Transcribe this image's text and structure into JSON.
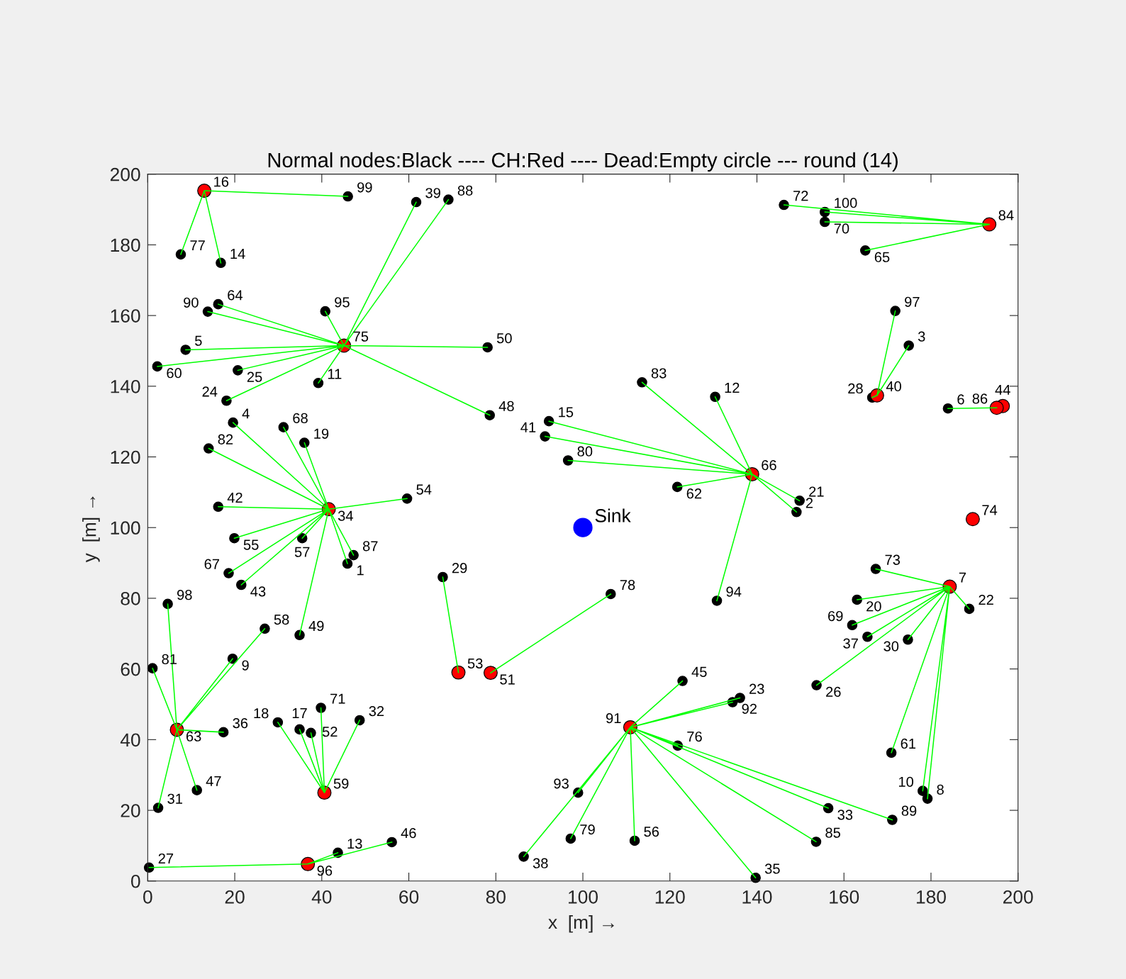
{
  "chart_data": {
    "type": "scatter",
    "title": "Normal nodes:Black ---- CH:Red ---- Dead:Empty circle --- round (14)",
    "xlabel": "x  [m] →",
    "ylabel": "y  [m] →",
    "xlim": [
      0,
      200
    ],
    "ylim": [
      0,
      200
    ],
    "xticks": [
      0,
      20,
      40,
      60,
      80,
      100,
      120,
      140,
      160,
      180,
      200
    ],
    "yticks": [
      0,
      20,
      40,
      60,
      80,
      100,
      120,
      140,
      160,
      180,
      200
    ],
    "line_style": "solid",
    "series": [
      {
        "color": "#000000",
        "marker": "circle",
        "x": [
          45.9,
          149.1,
          174.9,
          19.6,
          8.7,
          183.9,
          179.2,
          19.5,
          178.1,
          39.2,
          130.4,
          43.7,
          16.8,
          92.2,
          34.9,
          29.9,
          36.0,
          163.0,
          149.8,
          188.8,
          136.1,
          18.1,
          20.7,
          153.7,
          0.3,
          166.5,
          67.8,
          174.7,
          2.4,
          48.7,
          156.4,
          139.7,
          17.4,
          165.4,
          86.4,
          61.7,
          91.3,
          16.2,
          21.5,
          122.9,
          56.1,
          11.3,
          78.6,
          34.9,
          78.1,
          37.5,
          59.6,
          19.9,
          111.9,
          35.5,
          26.9,
          2.2,
          170.9,
          121.7,
          16.2,
          164.9,
          18.6,
          31.2,
          161.9,
          155.6,
          39.8,
          146.2,
          167.3,
          121.8,
          7.6,
          106.4,
          97.2,
          96.6,
          1.1,
          14.0,
          113.6,
          153.6,
          47.3,
          69.1,
          171.1,
          13.8,
          134.4,
          98.9,
          130.8,
          40.8,
          171.8,
          4.6,
          46.0,
          155.6
        ],
        "values": [
          89.8,
          104.4,
          151.5,
          129.7,
          150.3,
          133.7,
          23.3,
          62.9,
          25.5,
          140.9,
          137.0,
          8.0,
          174.9,
          130.1,
          42.9,
          44.9,
          124.0,
          79.6,
          107.6,
          77.0,
          51.8,
          135.9,
          144.5,
          55.4,
          3.8,
          136.8,
          86.0,
          68.3,
          20.7,
          45.5,
          20.6,
          0.9,
          42.1,
          69.1,
          6.9,
          192.1,
          125.8,
          105.9,
          83.8,
          56.6,
          11.0,
          25.7,
          131.8,
          69.6,
          151.0,
          41.9,
          108.2,
          97.0,
          11.4,
          97.0,
          71.4,
          145.6,
          36.3,
          111.5,
          163.2,
          178.4,
          87.1,
          128.4,
          72.4,
          186.5,
          49.0,
          191.3,
          88.3,
          38.3,
          177.3,
          81.2,
          12.0,
          119.0,
          60.2,
          122.4,
          141.1,
          11.1,
          92.2,
          192.8,
          17.3,
          161.1,
          50.6,
          25.0,
          79.3,
          161.2,
          161.3,
          78.4,
          193.7,
          189.3
        ]
      },
      {
        "color": "#ff0000",
        "marker": "circle",
        "x": [
          184.3,
          13.0,
          41.6,
          167.6,
          196.5,
          78.8,
          71.4,
          40.6,
          6.7,
          138.9,
          189.6,
          45.1,
          193.4,
          195.1,
          110.9,
          36.8
        ],
        "values": [
          83.3,
          195.3,
          105.2,
          137.4,
          134.4,
          58.9,
          59.0,
          25.0,
          42.8,
          115.1,
          102.4,
          151.5,
          185.8,
          133.9,
          43.5,
          4.8
        ]
      },
      {
        "color": "#0000ff",
        "marker": "circle",
        "x": [
          100
        ],
        "values": [
          100
        ]
      },
      {
        "type": "line",
        "color": "#00ff00",
        "x": [
          13.0,
          46.0,
          13.0,
          7.6,
          13.0,
          16.8
        ],
        "values": [
          195.3,
          193.7,
          195.3,
          177.3,
          195.3,
          174.9
        ]
      },
      {
        "type": "line",
        "color": "#00ff00",
        "x": [
          45.1,
          61.7,
          45.1,
          69.1,
          45.1,
          40.8,
          45.1,
          16.2,
          45.1,
          13.8,
          45.1,
          8.7,
          45.1,
          2.2,
          45.1,
          20.7,
          45.1,
          18.1,
          45.1,
          39.2,
          45.1,
          78.1,
          45.1,
          78.6
        ],
        "values": [
          151.5,
          192.1,
          151.5,
          192.8,
          151.5,
          161.2,
          151.5,
          163.2,
          151.5,
          161.1,
          151.5,
          150.3,
          151.5,
          145.6,
          151.5,
          144.5,
          151.5,
          135.9,
          151.5,
          140.9,
          151.5,
          151.0,
          151.5,
          131.8
        ]
      },
      {
        "type": "line",
        "color": "#00ff00",
        "x": [
          41.6,
          19.6,
          41.6,
          31.2,
          41.6,
          36.0,
          41.6,
          14.0,
          41.6,
          16.2,
          41.6,
          59.6,
          41.6,
          19.9,
          41.6,
          35.5,
          41.6,
          18.6,
          41.6,
          21.5,
          41.6,
          47.3,
          41.6,
          45.9,
          41.6,
          34.9
        ],
        "values": [
          105.2,
          129.7,
          105.2,
          128.4,
          105.2,
          124.0,
          105.2,
          122.4,
          105.2,
          105.9,
          105.2,
          108.2,
          105.2,
          97.0,
          105.2,
          97.0,
          105.2,
          87.1,
          105.2,
          83.8,
          105.2,
          92.2,
          105.2,
          89.8,
          105.2,
          69.6
        ]
      },
      {
        "type": "line",
        "color": "#00ff00",
        "x": [
          6.7,
          4.6,
          6.7,
          1.1,
          6.7,
          19.5,
          6.7,
          26.9,
          6.7,
          17.4,
          6.7,
          11.3,
          6.7,
          2.4
        ],
        "values": [
          42.8,
          78.4,
          42.8,
          60.2,
          42.8,
          62.9,
          42.8,
          71.4,
          42.8,
          42.1,
          42.8,
          25.7,
          42.8,
          20.7
        ]
      },
      {
        "type": "line",
        "color": "#00ff00",
        "x": [
          40.6,
          29.9,
          40.6,
          34.9,
          40.6,
          37.5,
          40.6,
          39.8,
          40.6,
          48.7
        ],
        "values": [
          25.0,
          44.9,
          25.0,
          42.9,
          25.0,
          41.9,
          25.0,
          49.0,
          25.0,
          45.5
        ]
      },
      {
        "type": "line",
        "color": "#00ff00",
        "x": [
          36.8,
          0.3,
          36.8,
          43.7,
          36.8,
          56.1
        ],
        "values": [
          4.8,
          3.8,
          4.8,
          8.0,
          4.8,
          11.0
        ]
      },
      {
        "type": "line",
        "color": "#00ff00",
        "x": [
          71.4,
          67.8
        ],
        "values": [
          59.0,
          86.0
        ]
      },
      {
        "type": "line",
        "color": "#00ff00",
        "x": [
          78.8,
          106.4
        ],
        "values": [
          58.9,
          81.2
        ]
      },
      {
        "type": "line",
        "color": "#00ff00",
        "x": [
          110.9,
          122.9,
          110.9,
          134.4,
          110.9,
          136.1,
          110.9,
          121.8,
          110.9,
          98.9,
          110.9,
          86.4,
          110.9,
          97.2,
          110.9,
          111.9,
          110.9,
          139.7,
          110.9,
          153.6,
          110.9,
          156.4,
          110.9,
          171.1
        ],
        "values": [
          43.5,
          56.6,
          43.5,
          50.6,
          43.5,
          51.8,
          43.5,
          38.3,
          43.5,
          25.0,
          43.5,
          6.9,
          43.5,
          12.0,
          43.5,
          11.4,
          43.5,
          0.9,
          43.5,
          11.1,
          43.5,
          20.6,
          43.5,
          17.3
        ]
      },
      {
        "type": "line",
        "color": "#00ff00",
        "x": [
          138.9,
          113.6,
          138.9,
          130.4,
          138.9,
          92.2,
          138.9,
          91.3,
          138.9,
          96.6,
          138.9,
          121.7,
          138.9,
          149.8,
          138.9,
          149.1,
          138.9,
          130.8
        ],
        "values": [
          115.1,
          141.1,
          115.1,
          137.0,
          115.1,
          130.1,
          115.1,
          125.8,
          115.1,
          119.0,
          115.1,
          111.5,
          115.1,
          107.6,
          115.1,
          104.4,
          115.1,
          79.3
        ]
      },
      {
        "type": "line",
        "color": "#00ff00",
        "x": [
          193.4,
          146.2,
          193.4,
          155.6,
          193.4,
          155.6,
          193.4,
          164.9
        ],
        "values": [
          185.8,
          191.3,
          185.8,
          189.3,
          185.8,
          186.5,
          185.8,
          178.4
        ]
      },
      {
        "type": "line",
        "color": "#00ff00",
        "x": [
          167.6,
          171.8,
          167.6,
          174.9,
          167.6,
          166.5
        ],
        "values": [
          137.4,
          161.3,
          137.4,
          151.5,
          137.4,
          136.8
        ]
      },
      {
        "type": "line",
        "color": "#00ff00",
        "x": [
          195.1,
          183.9
        ],
        "values": [
          133.9,
          133.7
        ]
      },
      {
        "type": "line",
        "color": "#00ff00",
        "x": [
          184.3,
          167.3,
          184.3,
          163.0,
          184.3,
          161.9,
          184.3,
          165.4,
          184.3,
          153.7,
          184.3,
          174.7,
          184.3,
          188.8,
          184.3,
          170.9,
          184.3,
          178.1,
          184.3,
          179.2
        ],
        "values": [
          83.3,
          88.3,
          83.3,
          79.6,
          83.3,
          72.4,
          83.3,
          69.1,
          83.3,
          55.4,
          83.3,
          68.3,
          83.3,
          77.0,
          83.3,
          36.3,
          83.3,
          25.5,
          83.3,
          23.3
        ]
      }
    ],
    "annotations": [
      {
        "text": "1",
        "x": 45.9,
        "y": 89.8
      },
      {
        "text": "2",
        "x": 149.1,
        "y": 104.4
      },
      {
        "text": "3",
        "x": 174.9,
        "y": 151.5
      },
      {
        "text": "4",
        "x": 19.6,
        "y": 129.7
      },
      {
        "text": "5",
        "x": 8.7,
        "y": 150.3
      },
      {
        "text": "6",
        "x": 183.9,
        "y": 133.7
      },
      {
        "text": "7",
        "x": 184.3,
        "y": 83.3
      },
      {
        "text": "8",
        "x": 179.2,
        "y": 23.3
      },
      {
        "text": "9",
        "x": 19.5,
        "y": 62.9
      },
      {
        "text": "10",
        "x": 178.1,
        "y": 25.5
      },
      {
        "text": "11",
        "x": 39.2,
        "y": 140.9
      },
      {
        "text": "12",
        "x": 130.4,
        "y": 137.0
      },
      {
        "text": "13",
        "x": 43.7,
        "y": 8.0
      },
      {
        "text": "14",
        "x": 16.8,
        "y": 174.9
      },
      {
        "text": "15",
        "x": 92.2,
        "y": 130.1
      },
      {
        "text": "16",
        "x": 13.0,
        "y": 195.3
      },
      {
        "text": "17",
        "x": 34.9,
        "y": 42.9
      },
      {
        "text": "18",
        "x": 29.9,
        "y": 44.9
      },
      {
        "text": "19",
        "x": 36.0,
        "y": 124.0
      },
      {
        "text": "20",
        "x": 163.0,
        "y": 79.6
      },
      {
        "text": "21",
        "x": 149.8,
        "y": 107.6
      },
      {
        "text": "22",
        "x": 188.8,
        "y": 77.0
      },
      {
        "text": "23",
        "x": 136.1,
        "y": 51.8
      },
      {
        "text": "24",
        "x": 18.1,
        "y": 135.9
      },
      {
        "text": "25",
        "x": 20.7,
        "y": 144.5
      },
      {
        "text": "26",
        "x": 153.7,
        "y": 55.4
      },
      {
        "text": "27",
        "x": 0.3,
        "y": 3.8
      },
      {
        "text": "28",
        "x": 166.5,
        "y": 136.8
      },
      {
        "text": "29",
        "x": 67.8,
        "y": 86.0
      },
      {
        "text": "30",
        "x": 174.7,
        "y": 68.3
      },
      {
        "text": "31",
        "x": 2.4,
        "y": 20.7
      },
      {
        "text": "32",
        "x": 48.7,
        "y": 45.5
      },
      {
        "text": "33",
        "x": 156.4,
        "y": 20.6
      },
      {
        "text": "34",
        "x": 41.6,
        "y": 105.2
      },
      {
        "text": "35",
        "x": 139.7,
        "y": 0.9
      },
      {
        "text": "36",
        "x": 17.4,
        "y": 42.1
      },
      {
        "text": "37",
        "x": 165.4,
        "y": 69.1
      },
      {
        "text": "38",
        "x": 86.4,
        "y": 6.9
      },
      {
        "text": "39",
        "x": 61.7,
        "y": 192.1
      },
      {
        "text": "40",
        "x": 167.6,
        "y": 137.4
      },
      {
        "text": "41",
        "x": 91.3,
        "y": 125.8
      },
      {
        "text": "42",
        "x": 16.2,
        "y": 105.9
      },
      {
        "text": "43",
        "x": 21.5,
        "y": 83.8
      },
      {
        "text": "44",
        "x": 196.5,
        "y": 134.4
      },
      {
        "text": "45",
        "x": 122.9,
        "y": 56.6
      },
      {
        "text": "46",
        "x": 56.1,
        "y": 11.0
      },
      {
        "text": "47",
        "x": 11.3,
        "y": 25.7
      },
      {
        "text": "48",
        "x": 78.6,
        "y": 131.8
      },
      {
        "text": "49",
        "x": 34.9,
        "y": 69.6
      },
      {
        "text": "50",
        "x": 78.1,
        "y": 151.0
      },
      {
        "text": "51",
        "x": 78.8,
        "y": 58.9
      },
      {
        "text": "52",
        "x": 37.5,
        "y": 41.9
      },
      {
        "text": "53",
        "x": 71.4,
        "y": 59.0
      },
      {
        "text": "54",
        "x": 59.6,
        "y": 108.2
      },
      {
        "text": "55",
        "x": 19.9,
        "y": 97.0
      },
      {
        "text": "56",
        "x": 111.9,
        "y": 11.4
      },
      {
        "text": "57",
        "x": 35.5,
        "y": 97.0
      },
      {
        "text": "58",
        "x": 26.9,
        "y": 71.4
      },
      {
        "text": "59",
        "x": 40.6,
        "y": 25.0
      },
      {
        "text": "60",
        "x": 2.2,
        "y": 145.6
      },
      {
        "text": "61",
        "x": 170.9,
        "y": 36.3
      },
      {
        "text": "62",
        "x": 121.7,
        "y": 111.5
      },
      {
        "text": "63",
        "x": 6.7,
        "y": 42.8
      },
      {
        "text": "64",
        "x": 16.2,
        "y": 163.2
      },
      {
        "text": "65",
        "x": 164.9,
        "y": 178.4
      },
      {
        "text": "66",
        "x": 138.9,
        "y": 115.1
      },
      {
        "text": "67",
        "x": 18.6,
        "y": 87.1
      },
      {
        "text": "68",
        "x": 31.2,
        "y": 128.4
      },
      {
        "text": "69",
        "x": 161.9,
        "y": 72.4
      },
      {
        "text": "70",
        "x": 155.6,
        "y": 186.5
      },
      {
        "text": "71",
        "x": 39.8,
        "y": 49.0
      },
      {
        "text": "72",
        "x": 146.2,
        "y": 191.3
      },
      {
        "text": "73",
        "x": 167.3,
        "y": 88.3
      },
      {
        "text": "74",
        "x": 189.6,
        "y": 102.4
      },
      {
        "text": "75",
        "x": 45.1,
        "y": 151.5
      },
      {
        "text": "76",
        "x": 121.8,
        "y": 38.3
      },
      {
        "text": "77",
        "x": 7.6,
        "y": 177.3
      },
      {
        "text": "78",
        "x": 106.4,
        "y": 81.2
      },
      {
        "text": "79",
        "x": 97.2,
        "y": 12.0
      },
      {
        "text": "80",
        "x": 96.6,
        "y": 119.0
      },
      {
        "text": "81",
        "x": 1.1,
        "y": 60.2
      },
      {
        "text": "82",
        "x": 14.0,
        "y": 122.4
      },
      {
        "text": "83",
        "x": 113.6,
        "y": 141.1
      },
      {
        "text": "84",
        "x": 193.4,
        "y": 185.8
      },
      {
        "text": "85",
        "x": 153.6,
        "y": 11.1
      },
      {
        "text": "86",
        "x": 195.1,
        "y": 133.9
      },
      {
        "text": "87",
        "x": 47.3,
        "y": 92.2
      },
      {
        "text": "88",
        "x": 69.1,
        "y": 192.8
      },
      {
        "text": "89",
        "x": 171.1,
        "y": 17.3
      },
      {
        "text": "90",
        "x": 13.8,
        "y": 161.1
      },
      {
        "text": "91",
        "x": 110.9,
        "y": 43.5
      },
      {
        "text": "92",
        "x": 134.4,
        "y": 50.6
      },
      {
        "text": "93",
        "x": 98.9,
        "y": 25.0
      },
      {
        "text": "94",
        "x": 130.8,
        "y": 79.3
      },
      {
        "text": "95",
        "x": 40.8,
        "y": 161.2
      },
      {
        "text": "96",
        "x": 36.8,
        "y": 4.8
      },
      {
        "text": "97",
        "x": 171.8,
        "y": 161.3
      },
      {
        "text": "98",
        "x": 4.6,
        "y": 78.4
      },
      {
        "text": "99",
        "x": 46.0,
        "y": 193.7
      },
      {
        "text": "100",
        "x": 155.6,
        "y": 189.3
      },
      {
        "text": "Sink",
        "x": 100,
        "y": 100
      }
    ]
  }
}
